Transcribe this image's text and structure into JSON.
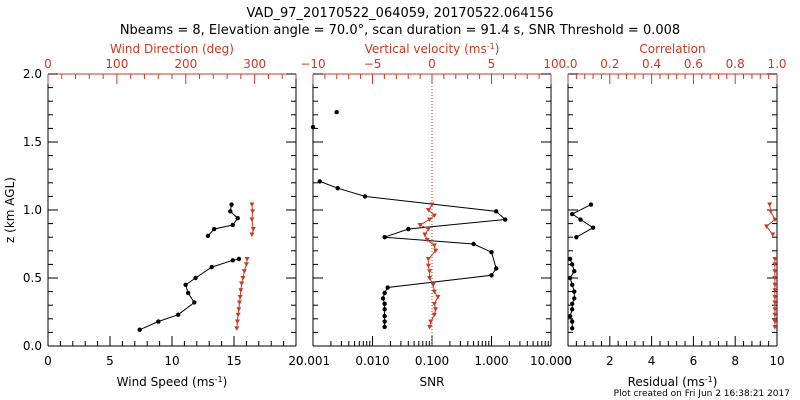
{
  "colors": {
    "black": "#000000",
    "red": "#cc3a22"
  },
  "title_line1": "VAD_97_20170522_064059, 20170522.064156",
  "title_line2": "Nbeams = 8, Elevation angle = 70.0°, scan duration = 91.4 s, SNR Threshold = 0.008",
  "footer": "Plot created on Fri Jun  2 16:38:21 2017",
  "chart_data": [
    {
      "type": "line",
      "ylabel": "z (km AGL)",
      "ylim": [
        0,
        2.0
      ],
      "yticks": [
        "0.0",
        "0.5",
        "1.0",
        "1.5",
        "2.0"
      ],
      "bottom_axis": {
        "label": "Wind Speed (ms",
        "label_sup": "-1",
        "label_tail": ")",
        "range": [
          0,
          20
        ],
        "ticks": [
          "0",
          "5",
          "10",
          "15",
          "20"
        ]
      },
      "top_axis": {
        "label": "Wind Direction (deg)",
        "range": [
          0,
          360
        ],
        "ticks": [
          "0",
          "100",
          "200",
          "300"
        ]
      },
      "series": [
        {
          "axis": "bottom",
          "color": "#000000",
          "segments": [
            [
              [
                15.4,
                0.64
              ],
              [
                14.9,
                0.63
              ],
              [
                13.2,
                0.58
              ],
              [
                11.9,
                0.5
              ],
              [
                11.1,
                0.45
              ],
              [
                11.3,
                0.39
              ],
              [
                11.8,
                0.32
              ],
              [
                10.5,
                0.23
              ],
              [
                8.9,
                0.18
              ],
              [
                7.4,
                0.12
              ]
            ],
            [
              [
                14.8,
                1.04
              ],
              [
                14.7,
                0.99
              ],
              [
                15.3,
                0.94
              ],
              [
                14.9,
                0.89
              ],
              [
                13.4,
                0.86
              ],
              [
                12.9,
                0.81
              ]
            ]
          ]
        },
        {
          "axis": "top",
          "color": "#cc3a22",
          "segments": [
            [
              [
                289,
                0.64
              ],
              [
                288,
                0.6
              ],
              [
                285,
                0.55
              ],
              [
                283,
                0.5
              ],
              [
                281,
                0.46
              ],
              [
                280,
                0.41
              ],
              [
                279,
                0.36
              ],
              [
                278,
                0.32
              ],
              [
                277,
                0.27
              ],
              [
                276,
                0.23
              ],
              [
                275,
                0.18
              ],
              [
                274,
                0.13
              ]
            ],
            [
              [
                296,
                1.04
              ],
              [
                297,
                0.99
              ],
              [
                296,
                0.93
              ],
              [
                298,
                0.86
              ],
              [
                296,
                0.82
              ]
            ]
          ]
        }
      ]
    },
    {
      "type": "line",
      "ylim": [
        0,
        2.0
      ],
      "xscale": "log",
      "bottom_axis": {
        "label": "SNR",
        "range": [
          0.001,
          10
        ],
        "ticks": [
          "0.001",
          "0.010",
          "0.100",
          "1.000",
          "10.000"
        ]
      },
      "top_axis": {
        "label": "Vertical velocity (ms",
        "label_sup": "-1",
        "label_tail": ")",
        "range": [
          -10,
          10
        ],
        "ticks": [
          "−10",
          "−5",
          "0",
          "5",
          "10"
        ]
      },
      "zero_line": 0,
      "series": [
        {
          "axis": "bottom",
          "color": "#000000",
          "segments": [
            [
              [
                0.0025,
                1.72
              ]
            ],
            [
              [
                0.001,
                1.61
              ]
            ],
            [
              [
                0.0013,
                1.21
              ],
              [
                0.0026,
                1.16
              ],
              [
                0.0075,
                1.1
              ],
              [
                1.2,
                0.99
              ],
              [
                1.7,
                0.93
              ],
              [
                0.04,
                0.86
              ],
              [
                0.016,
                0.8
              ],
              [
                0.5,
                0.75
              ],
              [
                1.0,
                0.69
              ],
              [
                1.2,
                0.57
              ],
              [
                1.0,
                0.52
              ],
              [
                0.018,
                0.43
              ],
              [
                0.016,
                0.39
              ],
              [
                0.015,
                0.35
              ],
              [
                0.016,
                0.31
              ],
              [
                0.016,
                0.27
              ],
              [
                0.016,
                0.22
              ],
              [
                0.016,
                0.18
              ],
              [
                0.016,
                0.14
              ]
            ]
          ]
        },
        {
          "axis": "top",
          "color": "#cc3a22",
          "segments": [
            [
              [
                0,
                1.04
              ],
              [
                -0.3,
                1.0
              ],
              [
                0.2,
                0.96
              ],
              [
                -0.2,
                0.93
              ],
              [
                -1.0,
                0.89
              ],
              [
                -0.3,
                0.86
              ],
              [
                -0.6,
                0.82
              ],
              [
                -0.4,
                0.78
              ],
              [
                0.2,
                0.74
              ],
              [
                0.3,
                0.7
              ],
              [
                -0.3,
                0.64
              ],
              [
                -0.3,
                0.59
              ],
              [
                -0.2,
                0.55
              ],
              [
                -0.2,
                0.5
              ],
              [
                0.1,
                0.45
              ],
              [
                0.2,
                0.4
              ],
              [
                0.5,
                0.36
              ],
              [
                0.2,
                0.31
              ],
              [
                0.3,
                0.27
              ],
              [
                0.2,
                0.23
              ],
              [
                -0.1,
                0.18
              ],
              [
                -0.2,
                0.14
              ]
            ]
          ]
        }
      ]
    },
    {
      "type": "line",
      "ylim": [
        0,
        2.0
      ],
      "bottom_axis": {
        "label": "Residual (ms",
        "label_sup": "-1",
        "label_tail": ")",
        "range": [
          0,
          10
        ],
        "ticks": [
          "0",
          "2",
          "4",
          "6",
          "8",
          "10"
        ]
      },
      "top_axis": {
        "label": "Correlation",
        "range": [
          0,
          1
        ],
        "ticks": [
          "0.0",
          "0.2",
          "0.4",
          "0.6",
          "0.8",
          "1.0"
        ]
      },
      "series": [
        {
          "axis": "bottom",
          "color": "#000000",
          "segments": [
            [
              [
                1.1,
                1.04
              ],
              [
                0.2,
                0.97
              ],
              [
                0.6,
                0.93
              ],
              [
                1.2,
                0.87
              ],
              [
                0.4,
                0.8
              ]
            ],
            [
              [
                0.1,
                0.64
              ],
              [
                0.2,
                0.6
              ],
              [
                0.3,
                0.55
              ],
              [
                0.1,
                0.5
              ],
              [
                0.2,
                0.45
              ],
              [
                0.3,
                0.4
              ],
              [
                0.3,
                0.35
              ],
              [
                0.2,
                0.31
              ],
              [
                0.2,
                0.27
              ],
              [
                0.1,
                0.22
              ],
              [
                0.2,
                0.18
              ],
              [
                0.2,
                0.13
              ]
            ]
          ]
        },
        {
          "axis": "top",
          "color": "#cc3a22",
          "segments": [
            [
              [
                0.965,
                1.04
              ],
              [
                0.97,
                0.99
              ],
              [
                0.99,
                0.93
              ],
              [
                0.95,
                0.88
              ],
              [
                0.98,
                0.82
              ]
            ],
            [
              [
                0.99,
                0.64
              ],
              [
                0.99,
                0.6
              ],
              [
                0.99,
                0.55
              ],
              [
                0.99,
                0.5
              ],
              [
                0.99,
                0.45
              ],
              [
                0.99,
                0.41
              ],
              [
                0.99,
                0.36
              ],
              [
                0.99,
                0.32
              ],
              [
                0.99,
                0.27
              ],
              [
                0.99,
                0.23
              ],
              [
                0.99,
                0.18
              ],
              [
                0.99,
                0.14
              ]
            ]
          ]
        }
      ]
    }
  ]
}
